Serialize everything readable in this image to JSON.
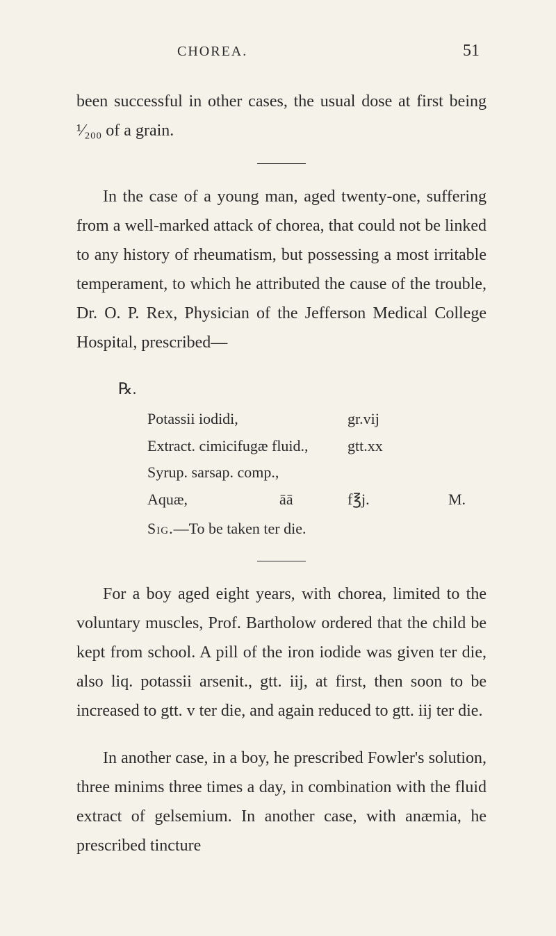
{
  "header": {
    "title": "CHOREA.",
    "page_number": "51"
  },
  "para1": "been successful in other cases, the usual dose at first being ¹⁄₂₀₀ of a grain.",
  "para2": "In the case of a young man, aged twenty-one, suffering from a well-marked attack of chorea, that could not be linked to any history of rheumatism, but possessing a most irritable temperament, to which he attributed the cause of the trouble, Dr. O. P. Rex, Physician of the Jefferson Medical College Hospital, prescribed—",
  "prescription": {
    "rx": "℞.",
    "lines": [
      {
        "ingredient": "Potassii iodidi,",
        "amount": "gr.vij",
        "final": ""
      },
      {
        "ingredient": "Extract. cimicifugæ fluid.,",
        "amount": "gtt.xx",
        "final": ""
      },
      {
        "ingredient": "Syrup. sarsap. comp.,",
        "amount": "",
        "final": ""
      },
      {
        "ingredient": "Aquæ,                        āā",
        "amount": "f℥j.",
        "final": "M."
      }
    ],
    "sig_label": "Sig.",
    "sig_text": "—To be taken ter die."
  },
  "para3": "For a boy aged eight years, with chorea, limited to the voluntary muscles, Prof. Bartholow ordered that the child be kept from school. A pill of the iron iodide was given ter die, also liq. potassii arsenit., gtt. iij, at first, then soon to be increased to gtt. v ter die, and again reduced to gtt. iij ter die.",
  "para4": "In another case, in a boy, he prescribed Fowler's solution, three minims three times a day, in combination with the fluid extract of gelsemium. In another case, with anæmia, he prescribed tincture"
}
